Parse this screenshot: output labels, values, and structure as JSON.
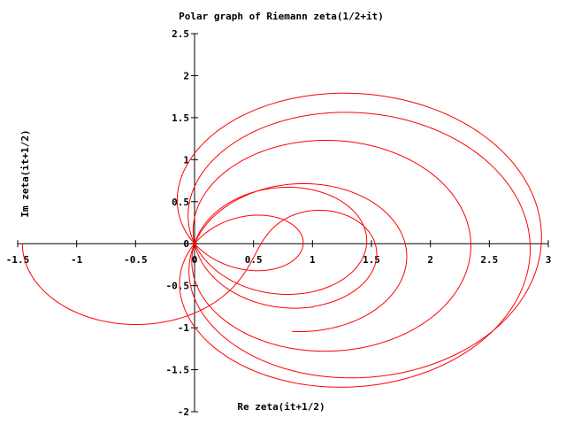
{
  "chart_data": {
    "type": "line",
    "title": "Polar graph of Riemann zeta(1/2+it)",
    "xlabel": "Re zeta(it+1/2)",
    "ylabel": "Im zeta(it+1/2)",
    "xlim": [
      -1.5,
      3
    ],
    "ylim": [
      -2,
      2.5
    ],
    "xticks": [
      -1.5,
      -1,
      -0.5,
      0,
      0.5,
      1,
      1.5,
      2,
      2.5,
      3
    ],
    "xtick_labels": [
      "-1.5",
      "-1",
      "-0.5",
      "0",
      "0.5",
      "1",
      "1.5",
      "2",
      "2.5",
      "3"
    ],
    "yticks": [
      -2,
      -1.5,
      -1,
      -0.5,
      0,
      0.5,
      1,
      1.5,
      2,
      2.5
    ],
    "ytick_labels": [
      "-2",
      "-1.5",
      "-1",
      "-0.5",
      "0",
      "0.5",
      "1",
      "1.5",
      "2",
      "2.5"
    ],
    "grid": false,
    "legend": "none",
    "series": [
      {
        "color": "#ff0000",
        "t_range": [
          0,
          40
        ],
        "x": [
          -1.46,
          -1.42,
          -1.34,
          -1.2,
          -1.03,
          -0.83,
          -0.62,
          -0.4,
          -0.2,
          -0.05,
          0.0,
          0.04,
          0.15,
          0.4,
          0.73,
          1.0,
          1.08,
          1.0,
          0.75,
          0.44,
          0.18,
          0.0
        ],
        "y": [
          0.0,
          -0.2,
          -0.4,
          -0.56,
          -0.67,
          -0.74,
          -0.77,
          -0.75,
          -0.67,
          -0.5,
          0.0,
          0.13,
          0.41,
          0.55,
          0.52,
          0.37,
          0.15,
          -0.05,
          -0.2,
          -0.25,
          -0.17,
          0.0
        ],
        "color_series": "#ff0000"
      }
    ]
  }
}
